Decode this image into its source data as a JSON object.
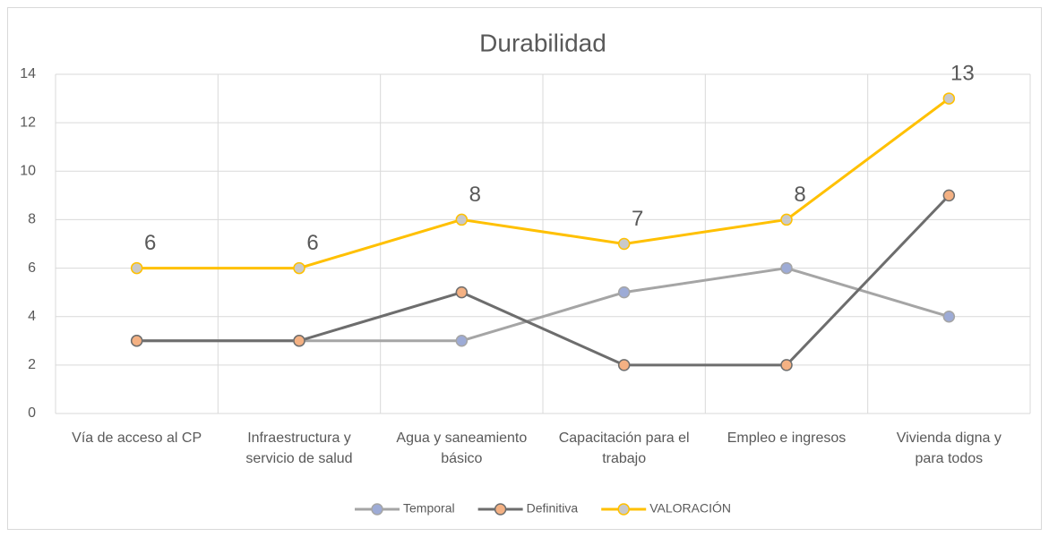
{
  "chart_data": {
    "type": "line",
    "title": "Durabilidad",
    "categories": [
      "Vía de acceso al CP",
      "Infraestructura y servicio de salud",
      "Agua y saneamiento básico",
      "Capacitación para el trabajo",
      "Empleo e ingresos",
      "Vivienda digna y para todos"
    ],
    "series": [
      {
        "name": "Temporal",
        "color": "#a5a5a5",
        "marker_color": "#9dabd6",
        "values": [
          3,
          3,
          3,
          5,
          6,
          4
        ]
      },
      {
        "name": "Definitiva",
        "color": "#6d6d6d",
        "marker_color": "#f4b183",
        "values": [
          3,
          3,
          5,
          2,
          2,
          9
        ]
      },
      {
        "name": "VALORACIÓN",
        "color": "#ffc000",
        "marker_color": "#c9c9c9",
        "values": [
          6,
          6,
          8,
          7,
          8,
          13
        ],
        "data_labels": true
      }
    ],
    "ylim": [
      0,
      14
    ],
    "yticks": [
      0,
      2,
      4,
      6,
      8,
      10,
      12,
      14
    ],
    "grid": true,
    "legend": "bottom"
  }
}
